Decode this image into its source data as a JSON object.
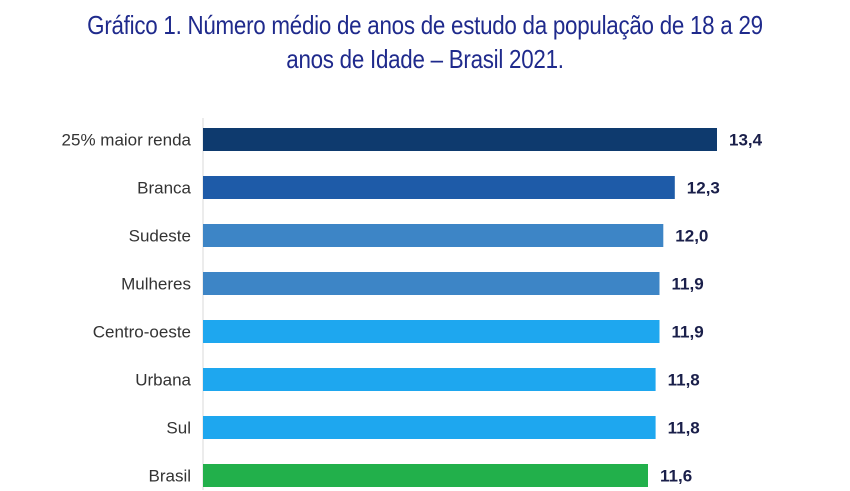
{
  "chart_data": {
    "type": "bar",
    "orientation": "horizontal",
    "title": "Gráfico 1. Número médio de anos de estudo da população de 18 a 29 anos de Idade – Brasil 2021.",
    "title_lines": [
      "Gráfico 1. Número médio de anos de estudo da população de 18 a 29",
      "anos de Idade – Brasil 2021."
    ],
    "categories": [
      "25% maior renda",
      "Branca",
      "Sudeste",
      "Mulheres",
      "Centro-oeste",
      "Urbana",
      "Sul",
      "Brasil"
    ],
    "values": [
      13.4,
      12.3,
      12.0,
      11.9,
      11.9,
      11.8,
      11.8,
      11.6
    ],
    "value_labels": [
      "13,4",
      "12,3",
      "12,0",
      "11,9",
      "11,9",
      "11,8",
      "11,8",
      "11,6"
    ],
    "colors": [
      "#0e3a6e",
      "#1e5ba8",
      "#3d85c6",
      "#3d85c6",
      "#1ea7ef",
      "#1ea7ef",
      "#1ea7ef",
      "#22b04b"
    ],
    "xlim": [
      0,
      13.4
    ],
    "xlabel": "",
    "ylabel": "",
    "grid": false,
    "legend": "none"
  }
}
